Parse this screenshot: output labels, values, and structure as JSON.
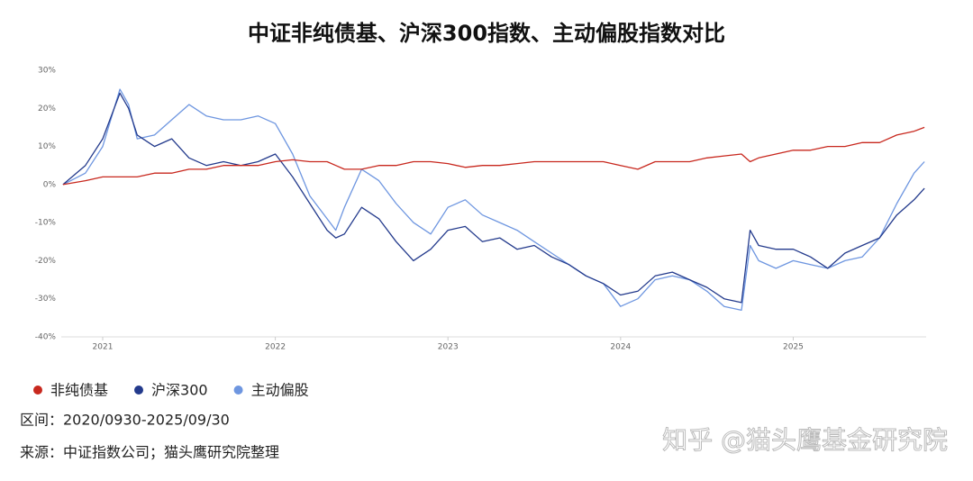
{
  "chart_data": {
    "type": "line",
    "title": "中证非纯债基、沪深300指数、主动偏股指数对比",
    "x": [
      2020.77,
      2020.9,
      2021.0,
      2021.1,
      2021.15,
      2021.2,
      2021.3,
      2021.4,
      2021.5,
      2021.6,
      2021.7,
      2021.8,
      2021.9,
      2022.0,
      2022.1,
      2022.2,
      2022.3,
      2022.35,
      2022.4,
      2022.5,
      2022.6,
      2022.7,
      2022.8,
      2022.9,
      2023.0,
      2023.1,
      2023.2,
      2023.3,
      2023.4,
      2023.5,
      2023.6,
      2023.7,
      2023.8,
      2023.9,
      2024.0,
      2024.1,
      2024.2,
      2024.3,
      2024.4,
      2024.5,
      2024.6,
      2024.7,
      2024.75,
      2024.8,
      2024.9,
      2025.0,
      2025.1,
      2025.2,
      2025.3,
      2025.4,
      2025.5,
      2025.6,
      2025.7,
      2025.76
    ],
    "series": [
      {
        "name": "非纯债基",
        "color": "#c8281e",
        "values": [
          0,
          1,
          2,
          2,
          2,
          2,
          3,
          3,
          4,
          4,
          5,
          5,
          5,
          6,
          6.5,
          6,
          6,
          5,
          4,
          4,
          5,
          5,
          6,
          6,
          5.5,
          4.5,
          5,
          5,
          5.5,
          6,
          6,
          6,
          6,
          6,
          5,
          4,
          6,
          6,
          6,
          7,
          7.5,
          8,
          6,
          7,
          8,
          9,
          9,
          10,
          10,
          11,
          11,
          13,
          14,
          15
        ]
      },
      {
        "name": "沪深300",
        "color": "#233a8c",
        "values": [
          0,
          5,
          12,
          24,
          20,
          13,
          10,
          12,
          7,
          5,
          6,
          5,
          6,
          8,
          2,
          -5,
          -12,
          -14,
          -13,
          -6,
          -9,
          -15,
          -20,
          -17,
          -12,
          -11,
          -15,
          -14,
          -17,
          -16,
          -19,
          -21,
          -24,
          -26,
          -29,
          -28,
          -24,
          -23,
          -25,
          -27,
          -30,
          -31,
          -12,
          -16,
          -17,
          -17,
          -19,
          -22,
          -18,
          -16,
          -14,
          -8,
          -4,
          -1
        ]
      },
      {
        "name": "主动偏股",
        "color": "#6e96e0",
        "values": [
          0,
          3,
          10,
          25,
          21,
          12,
          13,
          17,
          21,
          18,
          17,
          17,
          18,
          16,
          8,
          -3,
          -9,
          -12,
          -6,
          4,
          1,
          -5,
          -10,
          -13,
          -6,
          -4,
          -8,
          -10,
          -12,
          -15,
          -18,
          -21,
          -24,
          -26,
          -32,
          -30,
          -25,
          -24,
          -25,
          -28,
          -32,
          -33,
          -16,
          -20,
          -22,
          -20,
          -21,
          -22,
          -20,
          -19,
          -14,
          -5,
          3,
          6
        ]
      }
    ],
    "xlim": [
      2020.76,
      2025.77
    ],
    "xticks": [
      2021,
      2022,
      2023,
      2024,
      2025
    ],
    "ylim": [
      -40,
      30
    ],
    "yticks": [
      {
        "value": 30,
        "label": "30%"
      },
      {
        "value": 20,
        "label": "20%"
      },
      {
        "value": 10,
        "label": "10%"
      },
      {
        "value": 0,
        "label": "0%"
      },
      {
        "value": -10,
        "label": "-10%"
      },
      {
        "value": -20,
        "label": "-20%"
      },
      {
        "value": -30,
        "label": "-30%"
      },
      {
        "value": -40,
        "label": "-40%"
      }
    ],
    "grid": false,
    "notes": [
      "区间：2020/0930-2025/09/30",
      "来源：中证指数公司；猫头鹰研究院整理"
    ],
    "watermark": "知乎 @猫头鹰基金研究院"
  }
}
